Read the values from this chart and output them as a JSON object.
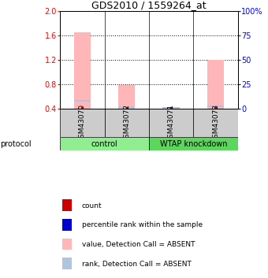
{
  "title": "GDS2010 / 1559264_at",
  "samples": [
    "GSM43070",
    "GSM43072",
    "GSM43071",
    "GSM43073"
  ],
  "group_labels": [
    "control",
    "WTAP knockdown"
  ],
  "group_colors": [
    "#90ee90",
    "#5cd65c"
  ],
  "sample_bg_color": "#cccccc",
  "bar_values": [
    1.65,
    0.78,
    0.405,
    1.2
  ],
  "rank_values_pct": [
    8.0,
    1.5,
    0.5,
    2.0
  ],
  "bar_color_absent": "#ffb6b9",
  "rank_color_absent": "#b0c4de",
  "count_color": "#cc0000",
  "ylim_left": [
    0.4,
    2.0
  ],
  "ylim_right": [
    0,
    100
  ],
  "yticks_left": [
    0.4,
    0.8,
    1.2,
    1.6,
    2.0
  ],
  "yticks_right": [
    0,
    25,
    50,
    75,
    100
  ],
  "ytick_labels_right": [
    "0",
    "25",
    "50",
    "75",
    "100%"
  ],
  "legend_items": [
    {
      "color": "#cc0000",
      "label": "count",
      "marker": "s"
    },
    {
      "color": "#0000cc",
      "label": "percentile rank within the sample",
      "marker": "s"
    },
    {
      "color": "#ffb6b9",
      "label": "value, Detection Call = ABSENT",
      "marker": "s"
    },
    {
      "color": "#b0c4de",
      "label": "rank, Detection Call = ABSENT",
      "marker": "s"
    }
  ],
  "protocol_label": "protocol"
}
